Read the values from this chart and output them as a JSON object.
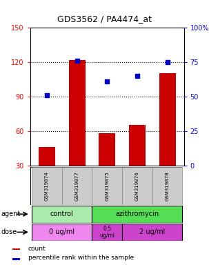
{
  "title": "GDS3562 / PA4474_at",
  "samples": [
    "GSM319874",
    "GSM319877",
    "GSM319875",
    "GSM319876",
    "GSM319878"
  ],
  "bar_values": [
    46,
    122,
    58,
    65,
    110
  ],
  "dot_values": [
    51,
    76,
    61,
    65,
    75
  ],
  "bar_color": "#cc0000",
  "dot_color": "#0000cc",
  "ylim_left": [
    30,
    150
  ],
  "ylim_right": [
    0,
    100
  ],
  "yticks_left": [
    30,
    60,
    90,
    120,
    150
  ],
  "yticks_right": [
    0,
    25,
    50,
    75,
    100
  ],
  "ytick_labels_left": [
    "30",
    "60",
    "90",
    "120",
    "150"
  ],
  "ytick_labels_right": [
    "0",
    "25",
    "50",
    "75",
    "100%"
  ],
  "legend_count_label": "count",
  "legend_pct_label": "percentile rank within the sample",
  "agent_text": "agent",
  "dose_text": "dose",
  "bg_color": "#ffffff",
  "plot_bg": "#ffffff",
  "sample_area_color": "#cccccc",
  "control_agent_color": "#aaeaaa",
  "azith_agent_color": "#55dd55",
  "dose_light_color": "#ee88ee",
  "dose_dark_color": "#cc44cc",
  "grid_color": "#000000",
  "title_fontsize": 9,
  "tick_fontsize": 7,
  "label_fontsize": 7,
  "sample_fontsize": 5
}
